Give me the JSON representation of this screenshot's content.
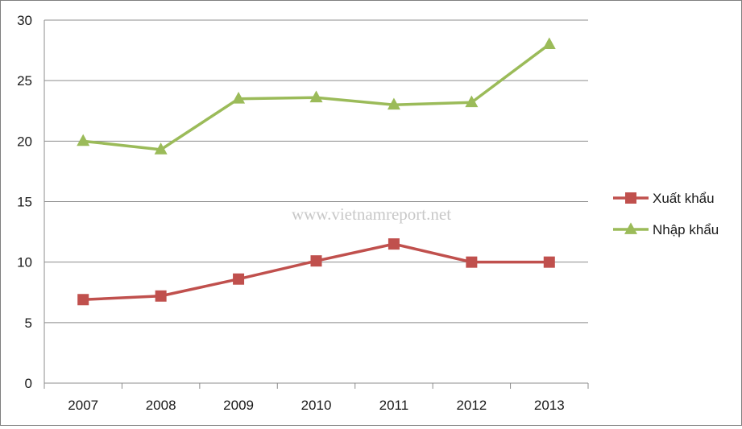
{
  "chart_data": {
    "type": "line",
    "title": "",
    "xlabel": "",
    "ylabel": "",
    "categories": [
      "2007",
      "2008",
      "2009",
      "2010",
      "2011",
      "2012",
      "2013"
    ],
    "ylim": [
      0,
      30
    ],
    "yticks": [
      "0",
      "5",
      "10",
      "15",
      "20",
      "25",
      "30"
    ],
    "grid": true,
    "legend": "right",
    "series": [
      {
        "name": "Xuất khẩu",
        "values": [
          6.9,
          7.2,
          8.6,
          10.1,
          11.5,
          10.0,
          10.0
        ],
        "color": "#c0504d",
        "marker": "square"
      },
      {
        "name": "Nhập khẩu",
        "values": [
          20.0,
          19.3,
          23.5,
          23.6,
          23.0,
          23.2,
          28.0
        ],
        "color": "#9bbb59",
        "marker": "triangle"
      }
    ]
  },
  "watermark": "www.vietnamreport.net"
}
